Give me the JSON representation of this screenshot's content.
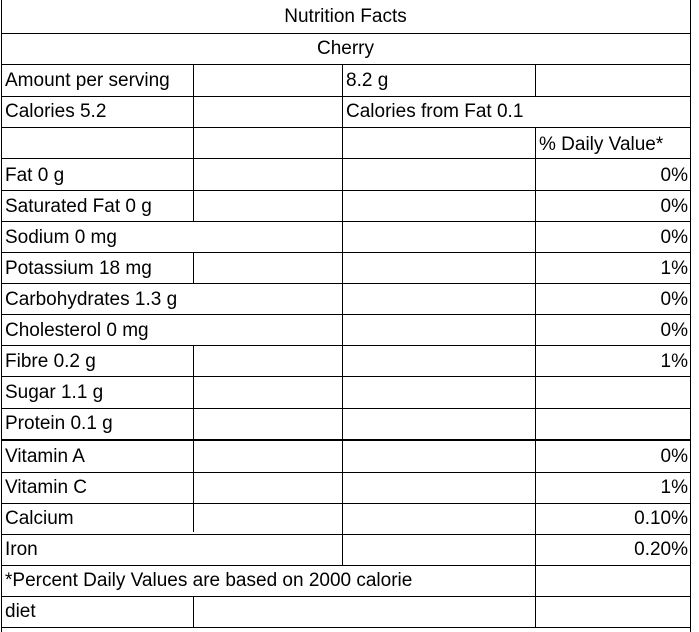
{
  "table": {
    "title": "Nutrition Facts",
    "subtitle": "Cherry",
    "amount_label": "Amount per serving",
    "amount_value": "8.2 g",
    "calories": "Calories 5.2",
    "calories_from_fat": "Calories from Fat 0.1",
    "daily_value_header": "% Daily Value*",
    "nutrients": [
      {
        "label": "Fat 0 g",
        "dv": "0%"
      },
      {
        "label": "Saturated Fat 0 g",
        "dv": "0%"
      },
      {
        "label": "Sodium 0 mg",
        "dv": "0%"
      },
      {
        "label": "Potassium 18 mg",
        "dv": "1%"
      },
      {
        "label": "Carbohydrates 1.3 g",
        "dv": "0%"
      },
      {
        "label": "Cholesterol 0 mg",
        "dv": "0%"
      },
      {
        "label": "Fibre 0.2 g",
        "dv": "1%"
      },
      {
        "label": "Sugar 1.1 g",
        "dv": ""
      },
      {
        "label": "Protein 0.1 g",
        "dv": ""
      },
      {
        "label": "Vitamin A",
        "dv": "0%"
      },
      {
        "label": "Vitamin C",
        "dv": "1%"
      },
      {
        "label": "Calcium",
        "dv": "0.10%"
      },
      {
        "label": "Iron",
        "dv": "0.20%"
      }
    ],
    "footnote_line1": "*Percent Daily Values are based on 2000 calorie",
    "footnote_line2": "diet"
  }
}
